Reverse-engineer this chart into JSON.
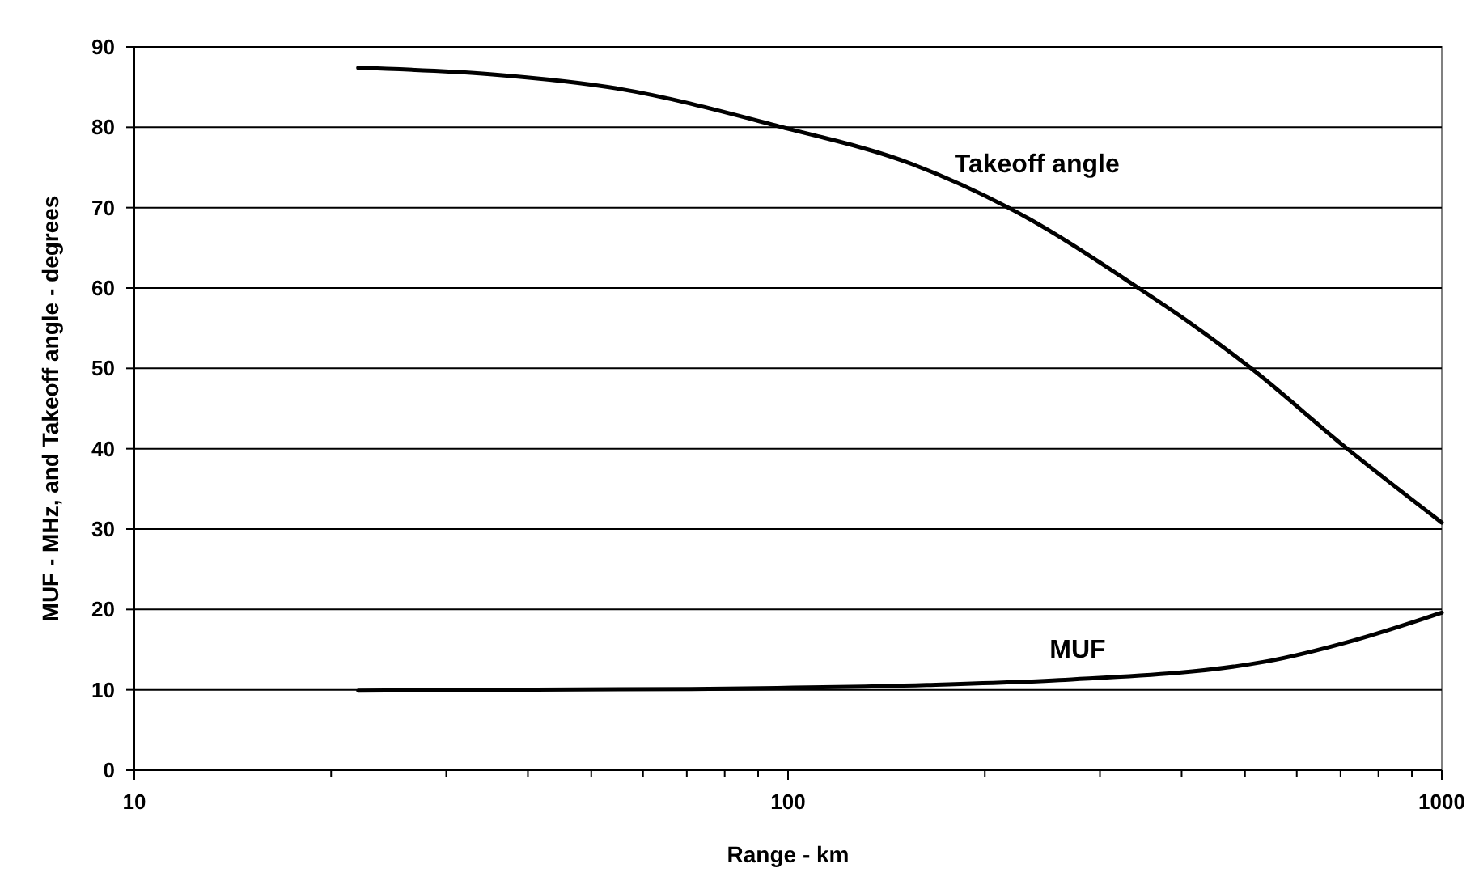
{
  "chart_data": {
    "type": "line",
    "xlabel": "Range - km",
    "ylabel": "MUF - MHz, and Takeoff angle - degrees",
    "log": "x",
    "grid": "y",
    "marker": "none",
    "line_style": "solid",
    "xlim": [
      10,
      1000
    ],
    "xticks": [
      10,
      {
        "value": 20,
        "label": null
      },
      {
        "value": 30,
        "label": null
      },
      {
        "value": 40,
        "label": null
      },
      {
        "value": 50,
        "label": null
      },
      {
        "value": 60,
        "label": null
      },
      {
        "value": 70,
        "label": null
      },
      {
        "value": 80,
        "label": null
      },
      {
        "value": 90,
        "label": null
      },
      100,
      {
        "value": 200,
        "label": null
      },
      {
        "value": 300,
        "label": null
      },
      {
        "value": 400,
        "label": null
      },
      {
        "value": 500,
        "label": null
      },
      {
        "value": 600,
        "label": null
      },
      {
        "value": 700,
        "label": null
      },
      {
        "value": 800,
        "label": null
      },
      {
        "value": 900,
        "label": null
      },
      1000
    ],
    "ylim": [
      0,
      90
    ],
    "yticks": [
      0,
      10,
      20,
      30,
      40,
      50,
      60,
      70,
      80,
      90
    ],
    "series": [
      {
        "name": "Takeoff angle",
        "color": "#000000",
        "x": [
          22,
          35,
          55,
          97,
          155,
          222,
          345,
          413,
          511,
          714,
          1000
        ],
        "values": [
          87.4,
          86.6,
          84.8,
          80.1,
          75.4,
          69.6,
          59.9,
          55.6,
          50,
          40.1,
          30.8
        ]
      },
      {
        "name": "MUF",
        "color": "#000000",
        "x": [
          22,
          71,
          163,
          260,
          537,
          730,
          1000
        ],
        "values": [
          9.9,
          10.1,
          10.6,
          11.2,
          13.5,
          16.1,
          19.6
        ]
      }
    ]
  }
}
